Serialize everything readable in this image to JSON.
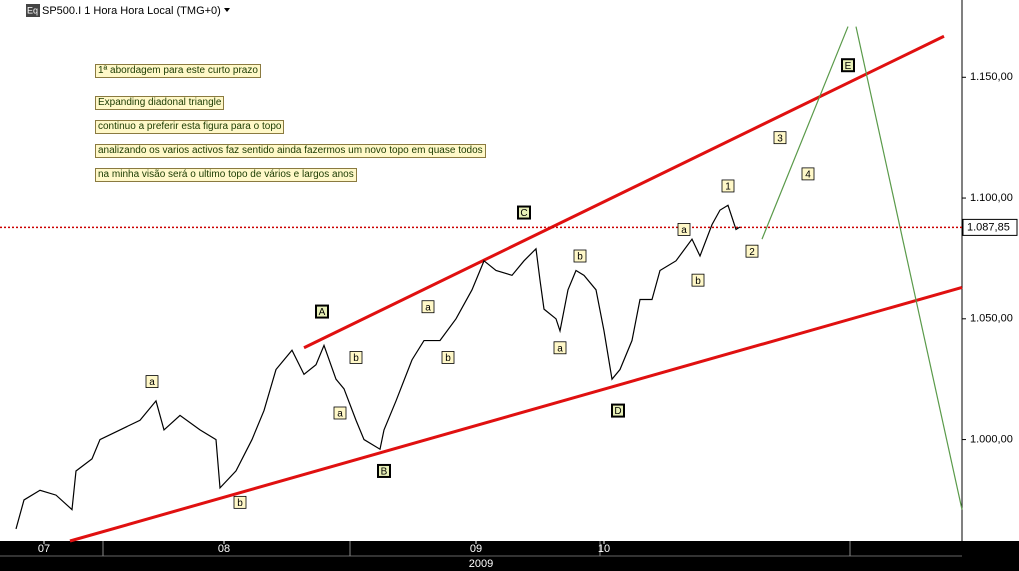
{
  "chart_data": {
    "type": "line",
    "title": "SP500.I 1 Hora Hora Local (TMG+0)",
    "icon_label": "Eq",
    "year_label": "2009",
    "series": [
      {
        "name": "SP500.I",
        "color": "#000000",
        "x": [
          4,
          6,
          10,
          14,
          18,
          19,
          23,
          25,
          30,
          35,
          39,
          41,
          45,
          50,
          54,
          55,
          59,
          63,
          66,
          69,
          73,
          76,
          79,
          81,
          84,
          86,
          89,
          91,
          95,
          96,
          99,
          103,
          106,
          110,
          114,
          118,
          121,
          124,
          128,
          131,
          134,
          135,
          136,
          139,
          140,
          142,
          144,
          146,
          149,
          151,
          153,
          155,
          158,
          160,
          163,
          165,
          169,
          173,
          175,
          178,
          180,
          182,
          184,
          185
        ],
        "values": [
          963,
          975,
          979,
          977,
          971,
          987,
          992,
          1000,
          1004,
          1008,
          1016,
          1004,
          1010,
          1004,
          1000,
          980,
          987,
          1000,
          1012,
          1029,
          1037,
          1027,
          1031,
          1039,
          1025,
          1021,
          1008,
          1000,
          996,
          1004,
          1016,
          1033,
          1041,
          1041,
          1050,
          1062,
          1074,
          1070,
          1068,
          1074,
          1079,
          1066,
          1054,
          1050,
          1045,
          1062,
          1070,
          1068,
          1062,
          1045,
          1025,
          1029,
          1041,
          1058,
          1058,
          1070,
          1074,
          1083,
          1076,
          1089,
          1095,
          1097,
          1087,
          1088
        ]
      }
    ],
    "last_price": {
      "value": 1087.85,
      "label": "1.087,85",
      "color": "#cc0000"
    },
    "xlim": [
      0,
      240.5
    ],
    "ylim": [
      958,
      1182
    ],
    "xticks": [
      {
        "value": 11,
        "label": "07"
      },
      {
        "value": 56,
        "label": "08"
      },
      {
        "value": 119,
        "label": "09"
      },
      {
        "value": 151,
        "label": "10"
      }
    ],
    "yticks": [
      {
        "value": 1000,
        "label": "1.000,00"
      },
      {
        "value": 1050,
        "label": "1.050,00"
      },
      {
        "value": 1100,
        "label": "1.100,00"
      },
      {
        "value": 1150,
        "label": "1.150,00"
      }
    ],
    "grid": false,
    "trend_lines": [
      {
        "x": [
          76,
          236
        ],
        "values": [
          1038,
          1167
        ],
        "color": "#e01010"
      },
      {
        "x": [
          17.5,
          240.5
        ],
        "values": [
          958,
          1063
        ],
        "color": "#e01010"
      },
      {
        "x": [
          190.5,
          212
        ],
        "values": [
          1083,
          1171
        ],
        "color": "#5a9a4a"
      },
      {
        "x": [
          214,
          240.5
        ],
        "values": [
          1171,
          971
        ],
        "color": "#5a9a4a"
      }
    ],
    "wave_labels": [
      {
        "label": "A",
        "x": 80.5,
        "value": 1053,
        "major": true
      },
      {
        "label": "B",
        "x": 96,
        "value": 987,
        "major": true
      },
      {
        "label": "C",
        "x": 131,
        "value": 1094,
        "major": true
      },
      {
        "label": "D",
        "x": 154.5,
        "value": 1012,
        "major": true
      },
      {
        "label": "E",
        "x": 212,
        "value": 1155,
        "major": true
      },
      {
        "label": "a",
        "x": 38,
        "value": 1024,
        "major": false
      },
      {
        "label": "b",
        "x": 60,
        "value": 974,
        "major": false
      },
      {
        "label": "b",
        "x": 89,
        "value": 1034,
        "major": false
      },
      {
        "label": "a",
        "x": 85,
        "value": 1011,
        "major": false
      },
      {
        "label": "a",
        "x": 107,
        "value": 1055,
        "major": false
      },
      {
        "label": "b",
        "x": 112,
        "value": 1034,
        "major": false
      },
      {
        "label": "b",
        "x": 145,
        "value": 1076,
        "major": false
      },
      {
        "label": "a",
        "x": 140,
        "value": 1038,
        "major": false
      },
      {
        "label": "a",
        "x": 171,
        "value": 1087,
        "major": false
      },
      {
        "label": "b",
        "x": 174.5,
        "value": 1066,
        "major": false
      },
      {
        "label": "1",
        "x": 182,
        "value": 1105,
        "major": false
      },
      {
        "label": "2",
        "x": 188,
        "value": 1078,
        "major": false
      },
      {
        "label": "3",
        "x": 195,
        "value": 1125,
        "major": false
      },
      {
        "label": "4",
        "x": 202,
        "value": 1110,
        "major": false
      }
    ],
    "notes": [
      "1ª abordagem para este curto prazo",
      "Expanding diadonal triangle",
      "continuo a preferir esta figura para o topo",
      "analizando os varios activos faz sentido ainda fazermos um novo topo em quase todos",
      "na minha visão será o ultimo topo de vários e largos anos"
    ]
  }
}
